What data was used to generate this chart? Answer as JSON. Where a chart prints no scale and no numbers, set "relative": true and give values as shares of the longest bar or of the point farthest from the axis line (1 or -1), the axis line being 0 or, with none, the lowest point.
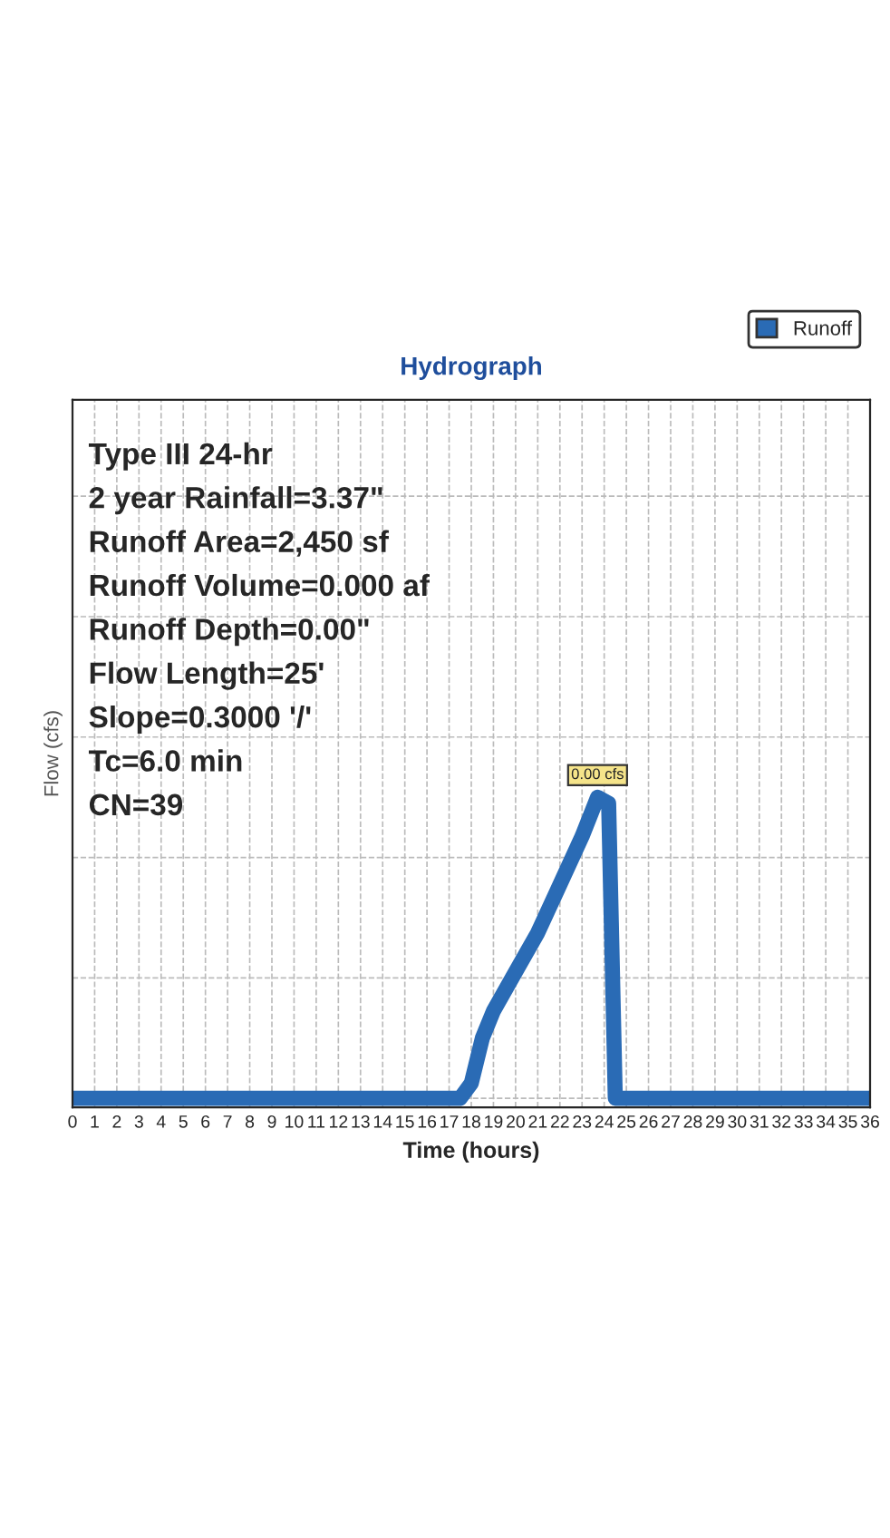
{
  "chart_data": {
    "type": "line",
    "title": "Hydrograph",
    "xlabel": "Time (hours)",
    "ylabel": "Flow (cfs)",
    "relative": true,
    "x": [
      0,
      17.5,
      18,
      18.5,
      19,
      20,
      21,
      22,
      23,
      23.7,
      24.2,
      24.5,
      36
    ],
    "series": [
      {
        "name": "Runoff",
        "color": "#2a6bb5",
        "values": [
          0,
          0,
          0.05,
          0.2,
          0.29,
          0.42,
          0.55,
          0.71,
          0.87,
          1,
          0.98,
          0,
          0
        ]
      }
    ],
    "xlim": [
      0,
      36
    ],
    "xticks": [
      0,
      1,
      2,
      3,
      4,
      5,
      6,
      7,
      8,
      9,
      10,
      11,
      12,
      13,
      14,
      15,
      16,
      17,
      18,
      19,
      20,
      21,
      22,
      23,
      24,
      25,
      26,
      27,
      28,
      29,
      30,
      31,
      32,
      33,
      34,
      35,
      36
    ],
    "annotations": [
      {
        "text": "0.00 cfs",
        "x": 23.7,
        "y": 1
      },
      "Type III 24-hr",
      "2 year Rainfall=3.37\"",
      "Runoff Area=2,450 sf",
      "Runoff Volume=0.000 af",
      "Runoff Depth=0.00\"",
      "Flow Length=25'",
      "Slope=0.3000 '/'",
      "Tc=6.0 min",
      "CN=39"
    ],
    "grid": true,
    "legend": "top right"
  }
}
